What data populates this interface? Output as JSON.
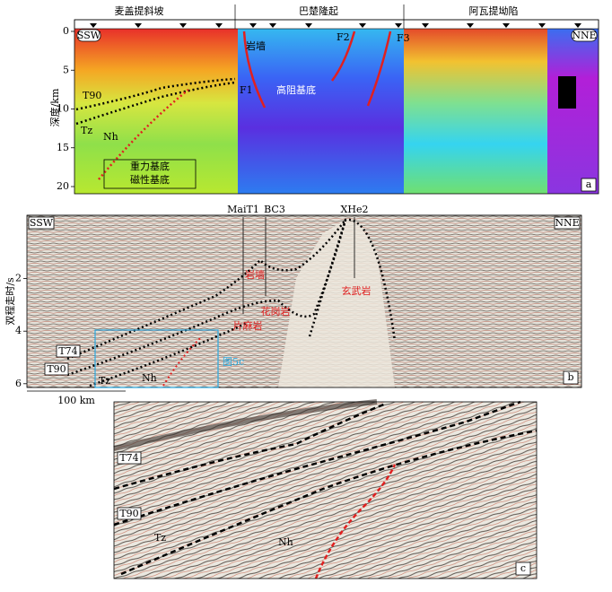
{
  "panel_a": {
    "regions": [
      "麦盖提斜坡",
      "巴楚隆起",
      "阿瓦提坳陷"
    ],
    "left_end": "SSW",
    "right_end": "NNE",
    "y_axis_label": "深度/km",
    "y_ticks": [
      0,
      5,
      10,
      15,
      20
    ],
    "labels": {
      "dike": "岩墙",
      "f1": "F1",
      "f2": "F2",
      "f3": "F3",
      "basement": "高阻基底",
      "t90": "T90",
      "tz": "Tz",
      "nh": "Nh",
      "gravity": "重力基底",
      "magnetic": "磁性基底"
    },
    "letter": "a"
  },
  "panel_b": {
    "left_end": "SSW",
    "right_end": "NNE",
    "wells": [
      "MaiT1",
      "BC3",
      "XHe2"
    ],
    "y_axis_label": "双程走时/s",
    "y_ticks": [
      2,
      4,
      6
    ],
    "labels": {
      "dike": "岩墙",
      "granite": "花岗岩",
      "basalt": "玄武岩",
      "gneiss": "片麻岩",
      "t74": "T74",
      "t90": "T90",
      "tz": "Tz",
      "nh": "Nh",
      "box": "图5c"
    },
    "scale": "100 km",
    "letter": "b"
  },
  "panel_c": {
    "labels": {
      "t74": "T74",
      "t90": "T90",
      "tz": "Tz",
      "nh": "Nh"
    },
    "letter": "c"
  }
}
